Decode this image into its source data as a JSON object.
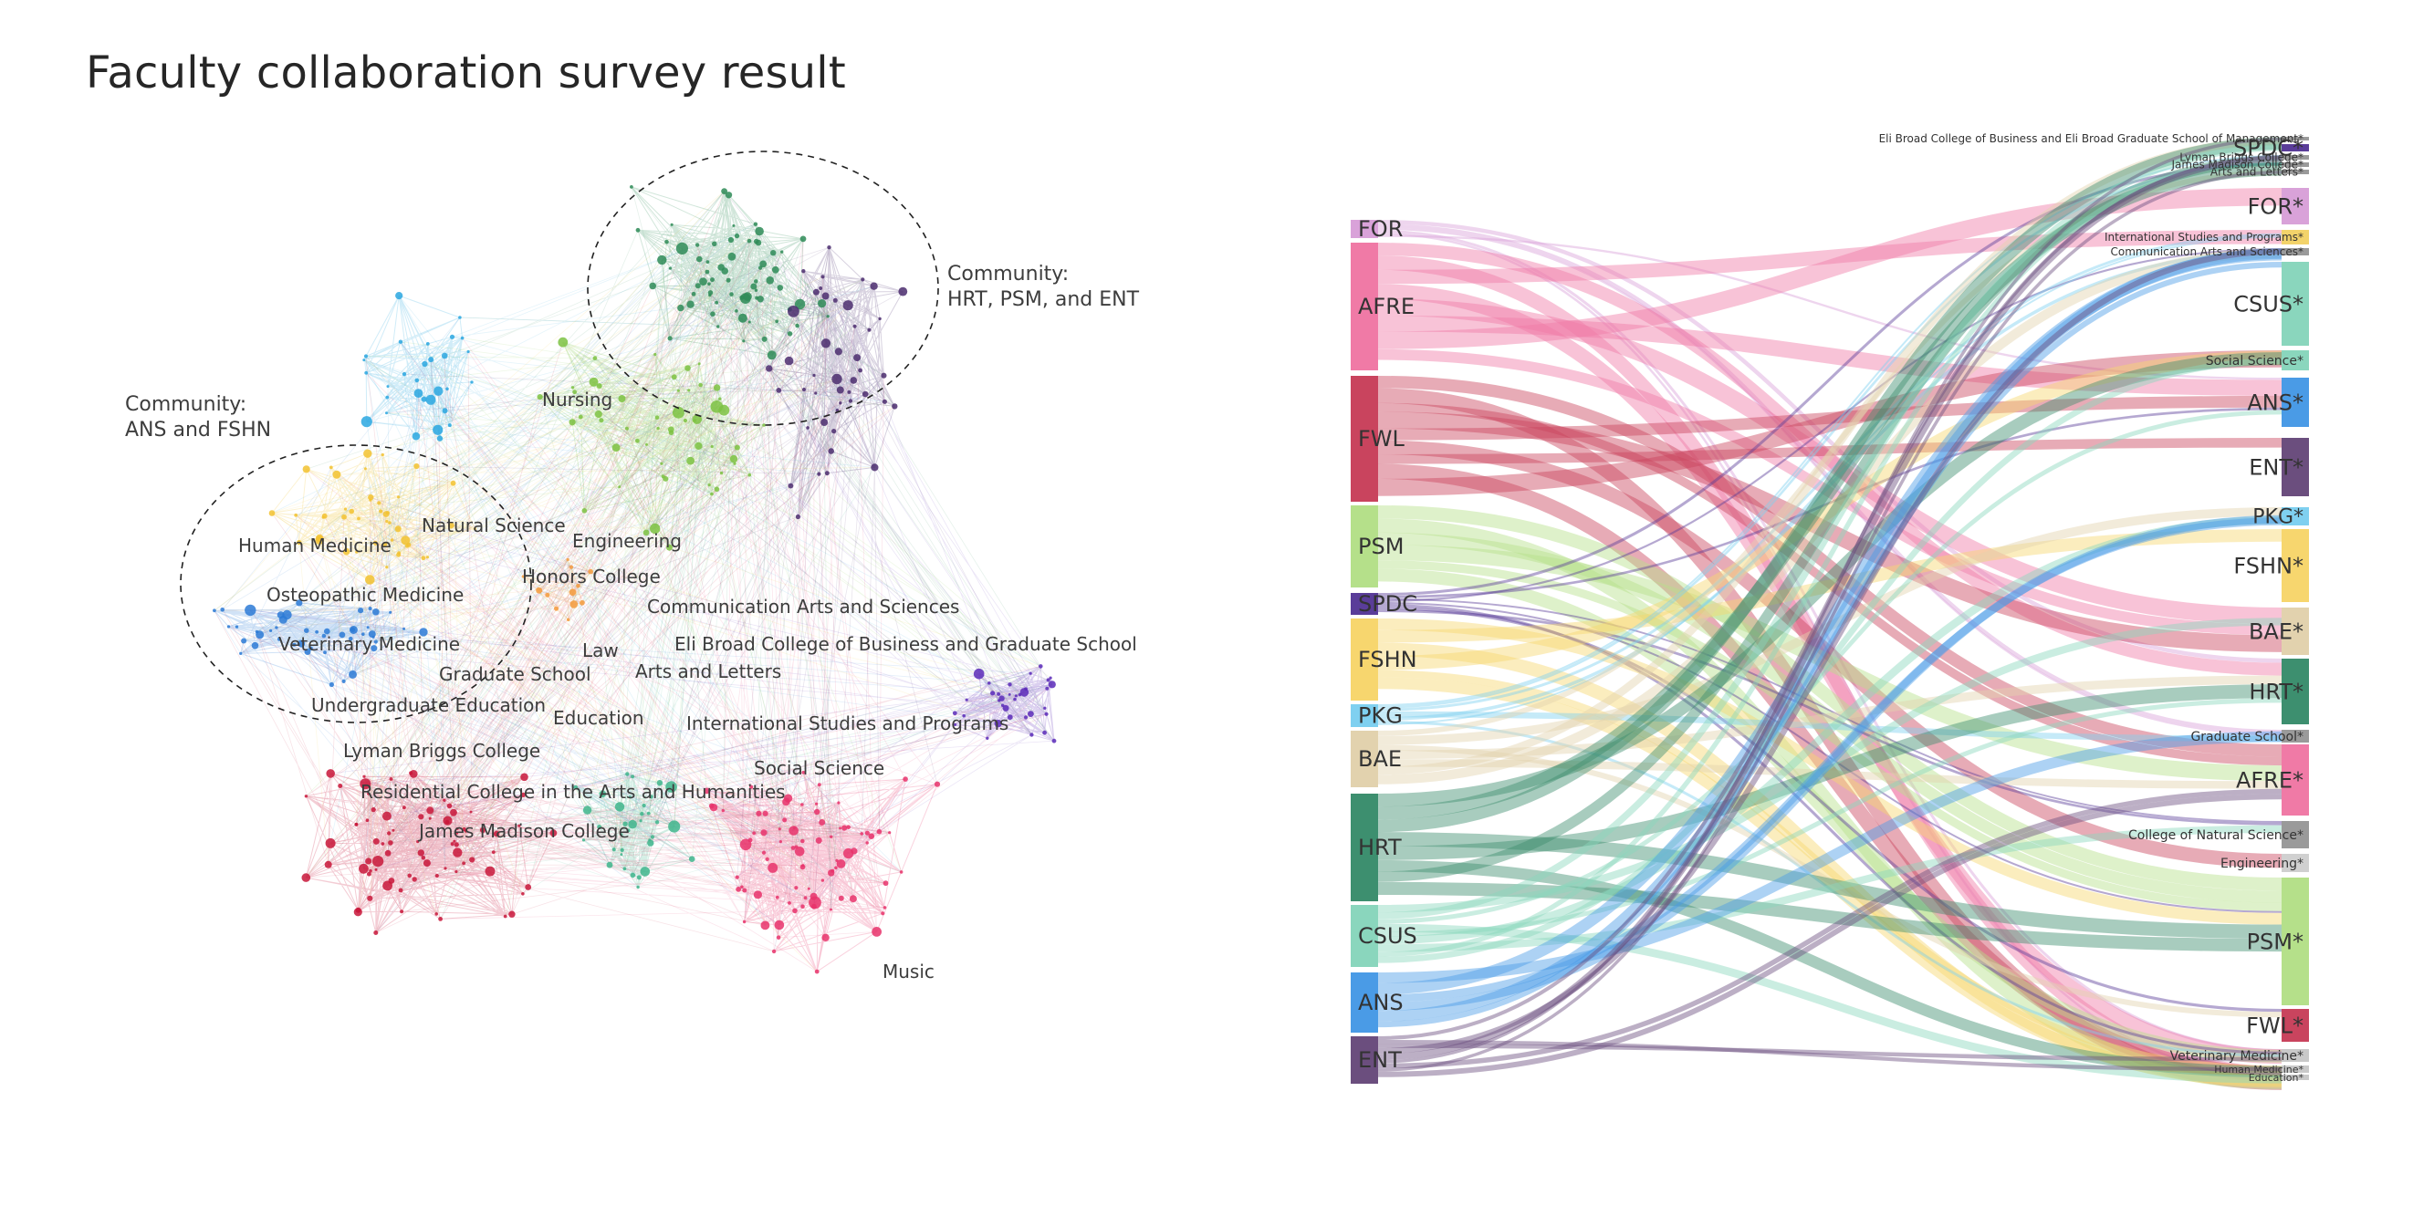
{
  "title": "Faculty collaboration survey result",
  "network": {
    "community_annotations": [
      {
        "lines": [
          "Community:",
          "HRT, PSM, and ENT"
        ]
      },
      {
        "lines": [
          "Community:",
          "ANS and FSHN"
        ]
      }
    ],
    "labels": [
      "Nursing",
      "Natural Science",
      "Engineering",
      "Human Medicine",
      "Honors College",
      "Osteopathic Medicine",
      "Communication Arts and Sciences",
      "Veterinary Medicine",
      "Eli Broad College of Business and Graduate School",
      "Law",
      "Graduate School",
      "Arts and Letters",
      "Undergraduate Education",
      "Education",
      "International Studies and Programs",
      "Lyman Briggs College",
      "Social Science",
      "Residential College in the Arts and Humanities",
      "James Madison College",
      "Music"
    ],
    "clusters": [
      {
        "color": "#2e8b57"
      },
      {
        "color": "#7cc242"
      },
      {
        "color": "#4b2d6e"
      },
      {
        "color": "#2aa7e0"
      },
      {
        "color": "#f2c230"
      },
      {
        "color": "#2b7ad6"
      },
      {
        "color": "#c8163a"
      },
      {
        "color": "#e8336b"
      },
      {
        "color": "#5b2ab8"
      },
      {
        "color": "#3fb58c"
      },
      {
        "color": "#f39a3c"
      }
    ]
  },
  "sankey": {
    "left_nodes": [
      {
        "label": "FOR",
        "color": "#d9a2d9"
      },
      {
        "label": "AFRE",
        "color": "#f07aa6"
      },
      {
        "label": "FWL",
        "color": "#c9445e"
      },
      {
        "label": "PSM",
        "color": "#b5e08a"
      },
      {
        "label": "SPDC",
        "color": "#5a3d99"
      },
      {
        "label": "FSHN",
        "color": "#f7d66e"
      },
      {
        "label": "PKG",
        "color": "#7fd0f0"
      },
      {
        "label": "BAE",
        "color": "#e2d2ae"
      },
      {
        "label": "HRT",
        "color": "#3d8f6f"
      },
      {
        "label": "CSUS",
        "color": "#8ad6bd"
      },
      {
        "label": "ANS",
        "color": "#4a9be6"
      },
      {
        "label": "ENT",
        "color": "#6b4e7e"
      }
    ],
    "right_nodes": [
      {
        "label": "Eli Broad College of Business and Eli Broad Graduate School of Management*",
        "color": "#9a9a9a"
      },
      {
        "label": "SPDC*",
        "color": "#5a3d99"
      },
      {
        "label": "Lyman Briggs College*",
        "color": "#9a9a9a"
      },
      {
        "label": "James Madison College*",
        "color": "#9a9a9a"
      },
      {
        "label": "Arts and Letters*",
        "color": "#9a9a9a"
      },
      {
        "label": "FOR*",
        "color": "#d9a2d9"
      },
      {
        "label": "International Studies and Programs*",
        "color": "#f3d36a"
      },
      {
        "label": "Communication Arts and Sciences*",
        "color": "#9a9a9a"
      },
      {
        "label": "CSUS*",
        "color": "#8ad6bd"
      },
      {
        "label": "Social Science*",
        "color": "#8ad6bd"
      },
      {
        "label": "ANS*",
        "color": "#4a9be6"
      },
      {
        "label": "ENT*",
        "color": "#6b4e7e"
      },
      {
        "label": "PKG*",
        "color": "#7fd0f0"
      },
      {
        "label": "FSHN*",
        "color": "#f7d66e"
      },
      {
        "label": "BAE*",
        "color": "#e2d2ae"
      },
      {
        "label": "HRT*",
        "color": "#3d8f6f"
      },
      {
        "label": "Graduate School*",
        "color": "#9a9a9a"
      },
      {
        "label": "AFRE*",
        "color": "#f07aa6"
      },
      {
        "label": "College of Natural Science*",
        "color": "#9a9a9a"
      },
      {
        "label": "Engineering*",
        "color": "#d0d0d0"
      },
      {
        "label": "PSM*",
        "color": "#b5e08a"
      },
      {
        "label": "FWL*",
        "color": "#c9445e"
      },
      {
        "label": "Veterinary Medicine*",
        "color": "#c9c9c9"
      },
      {
        "label": "Human Medicine*",
        "color": "#c9c9c9"
      },
      {
        "label": "Education*",
        "color": "#c9c9c9"
      }
    ]
  }
}
